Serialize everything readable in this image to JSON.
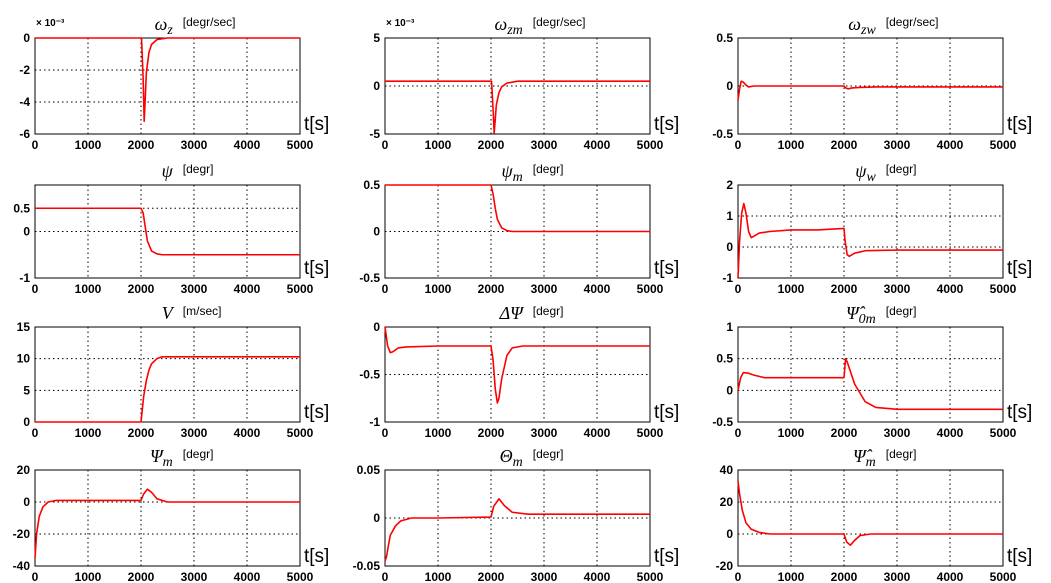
{
  "figure": {
    "line_color": "#ff0000",
    "grid": "dotted",
    "x_unit_label": "t[s]"
  },
  "chart_data": [
    {
      "type": "line",
      "title": "ω_z",
      "unit": "[degr/sec]",
      "scale_label": "× 10⁻³",
      "xlim": [
        0,
        5000
      ],
      "ylim": [
        -6,
        0
      ],
      "xticks": [
        "0",
        "1000",
        "2000",
        "3000",
        "4000",
        "5000"
      ],
      "yticks": [
        "0",
        "-2",
        "-4",
        "-6"
      ],
      "series": [
        {
          "x": [
            0,
            2000,
            2010,
            2040,
            2060,
            2080,
            2100,
            2150,
            2200,
            2300,
            2500,
            5000
          ],
          "y": [
            0,
            0,
            0,
            -2.5,
            -5.2,
            -3.8,
            -2.2,
            -0.9,
            -0.4,
            -0.1,
            0,
            0
          ]
        }
      ]
    },
    {
      "type": "line",
      "title": "ω_zm",
      "unit": "[degr/sec]",
      "scale_label": "× 10⁻³",
      "xlim": [
        0,
        5000
      ],
      "ylim": [
        -5,
        5
      ],
      "xticks": [
        "0",
        "1000",
        "2000",
        "3000",
        "4000",
        "5000"
      ],
      "yticks": [
        "5",
        "0",
        "-5"
      ],
      "series": [
        {
          "x": [
            0,
            2000,
            2010,
            2040,
            2060,
            2080,
            2100,
            2150,
            2200,
            2300,
            2500,
            5000
          ],
          "y": [
            0.5,
            0.5,
            0.5,
            -2.5,
            -4.9,
            -3.5,
            -2,
            -0.7,
            -0.1,
            0.3,
            0.5,
            0.5
          ]
        }
      ]
    },
    {
      "type": "line",
      "title": "ω_zw",
      "unit": "[degr/sec]",
      "xlim": [
        0,
        5000
      ],
      "ylim": [
        -0.5,
        0.5
      ],
      "xticks": [
        "0",
        "1000",
        "2000",
        "3000",
        "4000",
        "5000"
      ],
      "yticks": [
        "0.5",
        "0",
        "-0.5"
      ],
      "series": [
        {
          "x": [
            0,
            30,
            60,
            100,
            150,
            200,
            300,
            2000,
            2030,
            2080,
            2150,
            2300,
            2600,
            5000
          ],
          "y": [
            -0.15,
            -0.03,
            0.05,
            0.04,
            0.01,
            -0.01,
            0,
            0,
            -0.02,
            -0.03,
            -0.02,
            -0.015,
            -0.01,
            -0.01
          ]
        }
      ]
    },
    {
      "type": "line",
      "title": "ψ",
      "unit": "[degr]",
      "xlim": [
        0,
        5000
      ],
      "ylim": [
        -1,
        1
      ],
      "xticks": [
        "0",
        "1000",
        "2000",
        "3000",
        "4000",
        "5000"
      ],
      "yticks": [
        "0",
        "0.5",
        "-1"
      ],
      "series": [
        {
          "x": [
            0,
            2000,
            2040,
            2080,
            2120,
            2200,
            2300,
            2400,
            2500,
            5000
          ],
          "y": [
            0.5,
            0.5,
            0.4,
            0.1,
            -0.2,
            -0.42,
            -0.48,
            -0.5,
            -0.5,
            -0.5
          ]
        }
      ]
    },
    {
      "type": "line",
      "title": "ψ_m",
      "unit": "[degr]",
      "xlim": [
        0,
        5000
      ],
      "ylim": [
        -0.5,
        0.5
      ],
      "xticks": [
        "0",
        "1000",
        "2000",
        "3000",
        "4000",
        "5000"
      ],
      "yticks": [
        "0.5",
        "0",
        "-0.5"
      ],
      "series": [
        {
          "x": [
            0,
            2000,
            2040,
            2080,
            2120,
            2200,
            2300,
            2400,
            2500,
            5000
          ],
          "y": [
            0.5,
            0.5,
            0.4,
            0.25,
            0.13,
            0.04,
            0.01,
            0,
            0,
            0
          ]
        }
      ]
    },
    {
      "type": "line",
      "title": "ψ_w",
      "unit": "[degr]",
      "xlim": [
        0,
        5000
      ],
      "ylim": [
        -1,
        2
      ],
      "xticks": [
        "0",
        "1000",
        "2000",
        "3000",
        "4000",
        "5000"
      ],
      "yticks": [
        "2",
        "1",
        "0",
        "-1"
      ],
      "series": [
        {
          "x": [
            0,
            30,
            70,
            110,
            150,
            200,
            250,
            300,
            400,
            600,
            1000,
            1500,
            2000,
            2020,
            2060,
            2100,
            2200,
            2400,
            3000,
            5000
          ],
          "y": [
            -1,
            0.2,
            1.1,
            1.4,
            1.1,
            0.5,
            0.3,
            0.35,
            0.45,
            0.5,
            0.55,
            0.55,
            0.6,
            0.2,
            -0.25,
            -0.3,
            -0.2,
            -0.12,
            -0.1,
            -0.1
          ]
        }
      ]
    },
    {
      "type": "line",
      "title": "V",
      "unit": "[m/sec]",
      "xlim": [
        0,
        5000
      ],
      "ylim": [
        0,
        15
      ],
      "xticks": [
        "0",
        "1000",
        "2000",
        "3000",
        "4000",
        "5000"
      ],
      "yticks": [
        "15",
        "10",
        "5",
        "0"
      ],
      "series": [
        {
          "x": [
            0,
            2000,
            2050,
            2100,
            2150,
            2200,
            2300,
            2400,
            2600,
            5000
          ],
          "y": [
            0,
            0,
            4,
            6.5,
            8.2,
            9.2,
            10,
            10.3,
            10.3,
            10.3
          ]
        }
      ]
    },
    {
      "type": "line",
      "title": "ΔΨ",
      "unit": "[degr]",
      "xlim": [
        0,
        5000
      ],
      "ylim": [
        -1,
        0
      ],
      "xticks": [
        "0",
        "1000",
        "2000",
        "3000",
        "4000",
        "5000"
      ],
      "yticks": [
        "0",
        "-0.5",
        "-1"
      ],
      "series": [
        {
          "x": [
            0,
            50,
            100,
            150,
            250,
            400,
            1000,
            2000,
            2040,
            2080,
            2120,
            2150,
            2200,
            2300,
            2400,
            2600,
            5000
          ],
          "y": [
            0,
            -0.2,
            -0.27,
            -0.26,
            -0.22,
            -0.21,
            -0.2,
            -0.2,
            -0.35,
            -0.65,
            -0.8,
            -0.75,
            -0.55,
            -0.3,
            -0.22,
            -0.2,
            -0.2
          ]
        }
      ]
    },
    {
      "type": "line",
      "title": "Ψ̂_0m",
      "unit": "[degr]",
      "xlim": [
        0,
        5000
      ],
      "ylim": [
        -0.5,
        1
      ],
      "xticks": [
        "0",
        "1000",
        "2000",
        "3000",
        "4000",
        "5000"
      ],
      "yticks": [
        "1",
        "0.5",
        "0",
        "-0.5"
      ],
      "series": [
        {
          "x": [
            0,
            50,
            100,
            200,
            300,
            500,
            1000,
            2000,
            2030,
            2060,
            2100,
            2200,
            2400,
            2600,
            3000,
            5000
          ],
          "y": [
            0,
            0.2,
            0.28,
            0.27,
            0.24,
            0.2,
            0.2,
            0.2,
            0.5,
            0.45,
            0.35,
            0.1,
            -0.18,
            -0.27,
            -0.3,
            -0.3
          ]
        }
      ]
    },
    {
      "type": "line",
      "title": "Ψ_m",
      "unit": "[degr]",
      "xlim": [
        0,
        5000
      ],
      "ylim": [
        -40,
        20
      ],
      "xticks": [
        "0",
        "1000",
        "2000",
        "3000",
        "4000",
        "5000"
      ],
      "yticks": [
        "20",
        "0",
        "-20",
        "-40"
      ],
      "series": [
        {
          "x": [
            0,
            30,
            80,
            150,
            250,
            400,
            600,
            1000,
            2000,
            2050,
            2120,
            2200,
            2300,
            2500,
            5000
          ],
          "y": [
            -35,
            -20,
            -9,
            -3,
            0,
            1,
            1,
            1,
            1,
            5,
            8,
            6,
            2,
            0,
            0
          ]
        }
      ]
    },
    {
      "type": "line",
      "title": "Θ_m",
      "unit": "[degr]",
      "xlim": [
        0,
        5000
      ],
      "ylim": [
        -0.05,
        0.05
      ],
      "xticks": [
        "0",
        "1000",
        "2000",
        "3000",
        "4000",
        "5000"
      ],
      "yticks": [
        "0.05",
        "0",
        "-0.05"
      ],
      "series": [
        {
          "x": [
            0,
            30,
            60,
            100,
            200,
            300,
            500,
            1000,
            2000,
            2050,
            2150,
            2250,
            2400,
            2700,
            5000
          ],
          "y": [
            -0.045,
            -0.04,
            -0.03,
            -0.018,
            -0.008,
            -0.003,
            0,
            0,
            0.001,
            0.012,
            0.02,
            0.013,
            0.006,
            0.004,
            0.004
          ]
        }
      ]
    },
    {
      "type": "line",
      "title": "Ψ̂_m",
      "unit": "[degr]",
      "xlim": [
        0,
        5000
      ],
      "ylim": [
        -20,
        40
      ],
      "xticks": [
        "0",
        "1000",
        "2000",
        "3000",
        "4000",
        "5000"
      ],
      "yticks": [
        "40",
        "20",
        "0",
        "-20"
      ],
      "series": [
        {
          "x": [
            0,
            30,
            80,
            150,
            250,
            400,
            600,
            2000,
            2050,
            2120,
            2200,
            2300,
            2500,
            5000
          ],
          "y": [
            33,
            25,
            15,
            7,
            3,
            1,
            0,
            0,
            -5,
            -7,
            -4,
            -1,
            0,
            0
          ]
        }
      ]
    }
  ]
}
